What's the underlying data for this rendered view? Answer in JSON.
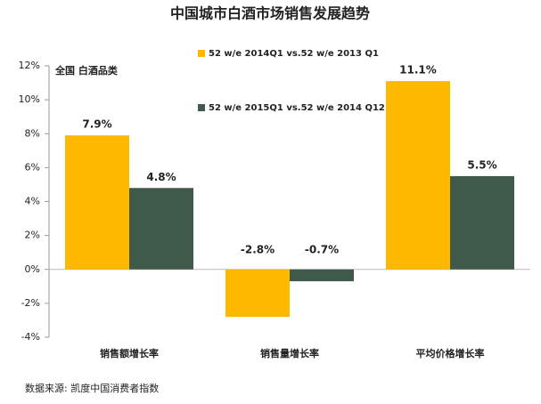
{
  "chart_data": {
    "type": "bar",
    "title": "中国城市白酒市场销售发展趋势",
    "annotations": [
      "全国  白酒品类",
      "数据来源: 凯度中国消费者指数"
    ],
    "categories": [
      "销售额增长率",
      "销售量增长率",
      "平均价格增长率"
    ],
    "series": [
      {
        "name": "52 w/e 2014Q1 vs.52 w/e 2013 Q1",
        "color": "#ffb800",
        "values": [
          7.9,
          -2.8,
          11.1
        ],
        "value_labels": [
          "7.9%",
          "-2.8%",
          "11.1%"
        ]
      },
      {
        "name": "52 w/e 2015Q1 vs.52 w/e 2014 Q12",
        "color": "#3f5a4a",
        "values": [
          4.8,
          -0.7,
          5.5
        ],
        "value_labels": [
          "4.8%",
          "-0.7%",
          "5.5%"
        ]
      }
    ],
    "ylim": [
      -4,
      12
    ],
    "yticks": [
      {
        "value": -4,
        "label": "-4%"
      },
      {
        "value": -2,
        "label": "-2%"
      },
      {
        "value": 0,
        "label": "0%"
      },
      {
        "value": 2,
        "label": "2%"
      },
      {
        "value": 4,
        "label": "4%"
      },
      {
        "value": 6,
        "label": "6%"
      },
      {
        "value": 8,
        "label": "8%"
      },
      {
        "value": 10,
        "label": "10%"
      },
      {
        "value": 12,
        "label": "12%"
      }
    ],
    "grid": false
  }
}
